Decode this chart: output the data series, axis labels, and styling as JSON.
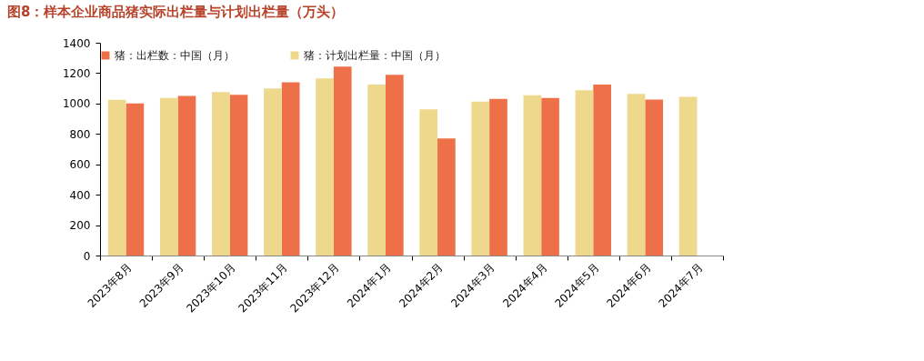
{
  "chart_data": {
    "type": "bar",
    "title": "图8：样本企业商品猪实际出栏量与计划出栏量（万头）",
    "categories": [
      "2023年8月",
      "2023年9月",
      "2023年10月",
      "2023年11月",
      "2023年12月",
      "2024年1月",
      "2024年2月",
      "2024年3月",
      "2024年4月",
      "2024年5月",
      "2024年6月",
      "2024年7月"
    ],
    "series": [
      {
        "name": "猪：出栏数：中国（月）",
        "color": "#ed7049",
        "values": [
          1000,
          1050,
          1058,
          1140,
          1243,
          1189,
          770,
          1030,
          1036,
          1125,
          1026,
          null
        ]
      },
      {
        "name": "猪：计划出栏量：中国（月）",
        "color": "#eed88c",
        "values": [
          1024,
          1036,
          1076,
          1100,
          1165,
          1125,
          962,
          1012,
          1054,
          1088,
          1064,
          1044
        ]
      }
    ],
    "ylim": [
      0,
      1400
    ],
    "yticks": [
      0,
      200,
      400,
      600,
      800,
      1000,
      1200,
      1400
    ],
    "grid": false,
    "legend": "top"
  }
}
